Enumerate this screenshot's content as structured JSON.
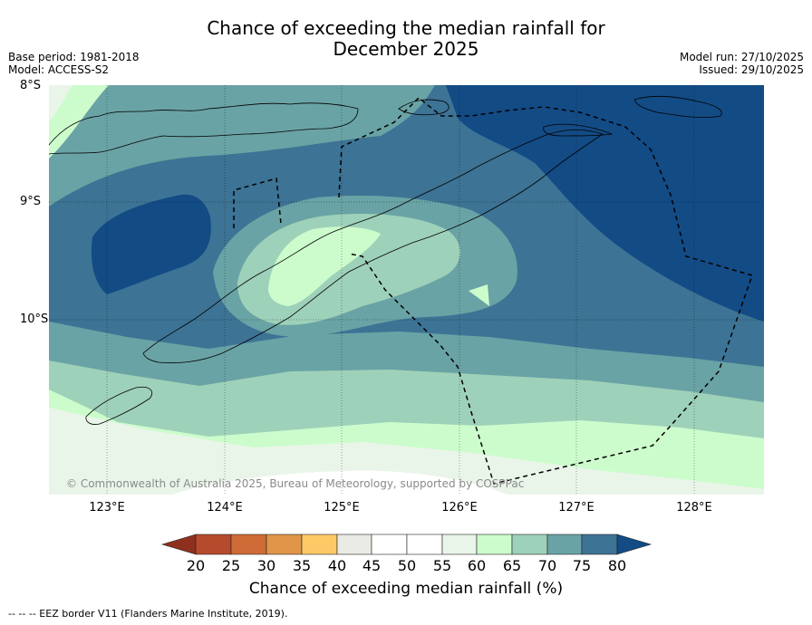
{
  "header": {
    "title_line1": "Chance of exceeding the median rainfall for",
    "title_line2": "December 2025",
    "base_period": "Base period: 1981-2018",
    "model": "Model: ACCESS-S2",
    "model_run": "Model run: 27/10/2025",
    "issued": "Issued: 29/10/2025"
  },
  "map": {
    "lat_labels": [
      "8°S",
      "9°S",
      "10°S"
    ],
    "lon_labels": [
      "123°E",
      "124°E",
      "125°E",
      "126°E",
      "127°E",
      "128°E"
    ],
    "copyright": "© Commonwealth of Australia 2025, Bureau of Meteorology, supported by COSPPac",
    "colors": {
      "c20_25": "#b54b2c",
      "c25_30": "#cf6b36",
      "c30_35": "#e09548",
      "c35_40": "#fdc966",
      "c40_45": "#ebebe5",
      "c45_50": "#ffffff",
      "c50_55": "#ffffff",
      "c55_60": "#eaf5ea",
      "c60_65": "#ccfccc",
      "c65_70": "#9ed1b9",
      "c70_75": "#6aa3a5",
      "c75_80": "#3d7394",
      "c80plus": "#134b85",
      "below20": "#8f2f1e"
    }
  },
  "colorbar": {
    "ticks": [
      "20",
      "25",
      "30",
      "35",
      "40",
      "45",
      "50",
      "55",
      "60",
      "65",
      "70",
      "75",
      "80"
    ],
    "label": "Chance of exceeding median rainfall (%)"
  },
  "footnote": "--  --  -- EEZ border V11 (Flanders Marine Institute, 2019)."
}
